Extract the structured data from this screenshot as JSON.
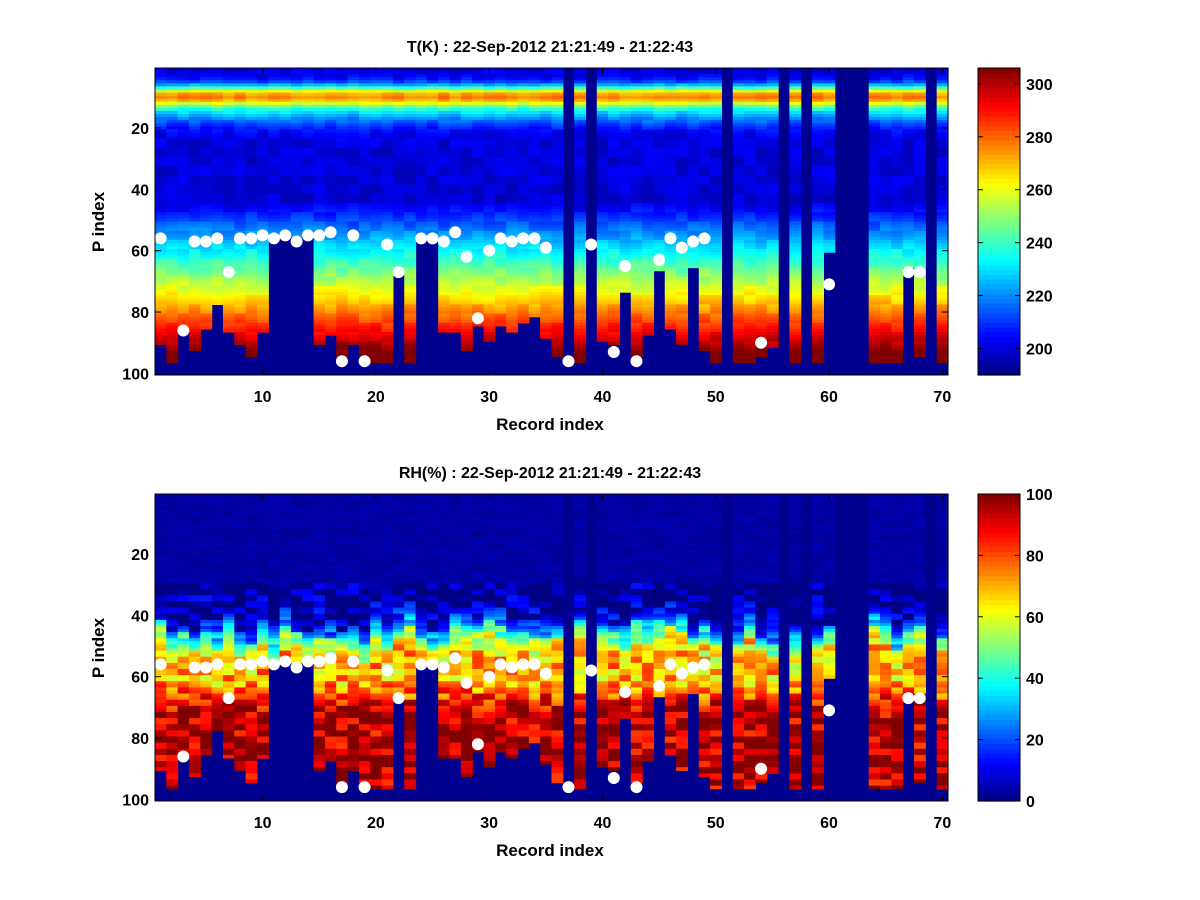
{
  "figure": {
    "background": "#ffffff"
  },
  "chart_data": [
    {
      "type": "heatmap",
      "title": "T(K) : 22-Sep-2012 21:21:49 - 21:22:43",
      "xlabel": "Record index",
      "ylabel": "P index",
      "xlim": [
        0.5,
        70.5
      ],
      "ylim": [
        100,
        1
      ],
      "x_ticks": [
        10,
        20,
        30,
        40,
        50,
        60,
        70
      ],
      "y_ticks": [
        20,
        40,
        60,
        80,
        100
      ],
      "colormap": "jet",
      "masked_color": "#00008f",
      "colorbar": {
        "min": 190,
        "max": 306,
        "ticks": [
          200,
          220,
          240,
          260,
          280,
          300
        ]
      },
      "field_description": "Temperature profile per record: warm band near P 8-12, cold minimum near P 40-45, warming to ~300 K at bottom; masked below surface level",
      "markers": {
        "color": "#ffffff",
        "name": "surface-level"
      }
    },
    {
      "type": "heatmap",
      "title": "RH(%) : 22-Sep-2012 21:21:49 - 21:22:43",
      "xlabel": "Record index",
      "ylabel": "P index",
      "xlim": [
        0.5,
        70.5
      ],
      "ylim": [
        100,
        1
      ],
      "x_ticks": [
        10,
        20,
        30,
        40,
        50,
        60,
        70
      ],
      "y_ticks": [
        20,
        40,
        60,
        80,
        100
      ],
      "colormap": "jet",
      "masked_color": "#00008f",
      "colorbar": {
        "min": 0,
        "max": 100,
        "ticks": [
          0,
          20,
          40,
          60,
          80,
          100
        ]
      },
      "field_description": "Relative humidity near 0% aloft, rising sharply below P ~45 to 80-100% in the lower levels; masked below surface level",
      "markers": {
        "color": "#ffffff",
        "name": "surface-level"
      }
    }
  ],
  "profiles": {
    "records": [
      1,
      2,
      3,
      4,
      5,
      6,
      7,
      8,
      9,
      10,
      11,
      12,
      13,
      14,
      15,
      16,
      17,
      18,
      19,
      20,
      21,
      22,
      23,
      24,
      25,
      26,
      27,
      28,
      29,
      30,
      31,
      32,
      33,
      34,
      35,
      36,
      37,
      38,
      39,
      40,
      41,
      42,
      43,
      44,
      45,
      46,
      47,
      48,
      49,
      50,
      51,
      52,
      53,
      54,
      55,
      56,
      57,
      58,
      59,
      60,
      61,
      62,
      63,
      64,
      65,
      66,
      67,
      68,
      69,
      70
    ],
    "surface_p": [
      91,
      97,
      87,
      93,
      86,
      78,
      87,
      91,
      95,
      87,
      56,
      56,
      56,
      56,
      91,
      88,
      95,
      91,
      95,
      97,
      97,
      67,
      97,
      56,
      56,
      87,
      87,
      93,
      85,
      90,
      85,
      87,
      84,
      82,
      89,
      95,
      1,
      97,
      1,
      90,
      91,
      74,
      95,
      88,
      67,
      86,
      91,
      66,
      93,
      97,
      1,
      97,
      97,
      95,
      92,
      1,
      97,
      1,
      97,
      61,
      1,
      1,
      1,
      97,
      97,
      97,
      66,
      95,
      1,
      97
    ],
    "marker_p": [
      56,
      null,
      86,
      57,
      57,
      56,
      67,
      56,
      56,
      55,
      56,
      55,
      57,
      55,
      55,
      54,
      96,
      55,
      96,
      null,
      58,
      67,
      null,
      56,
      56,
      57,
      54,
      62,
      82,
      60,
      56,
      57,
      56,
      56,
      59,
      null,
      96,
      null,
      58,
      null,
      93,
      65,
      96,
      null,
      63,
      56,
      59,
      57,
      56,
      null,
      null,
      null,
      null,
      90,
      null,
      null,
      null,
      null,
      null,
      71,
      null,
      null,
      null,
      null,
      null,
      null,
      67,
      67,
      null,
      null
    ]
  }
}
